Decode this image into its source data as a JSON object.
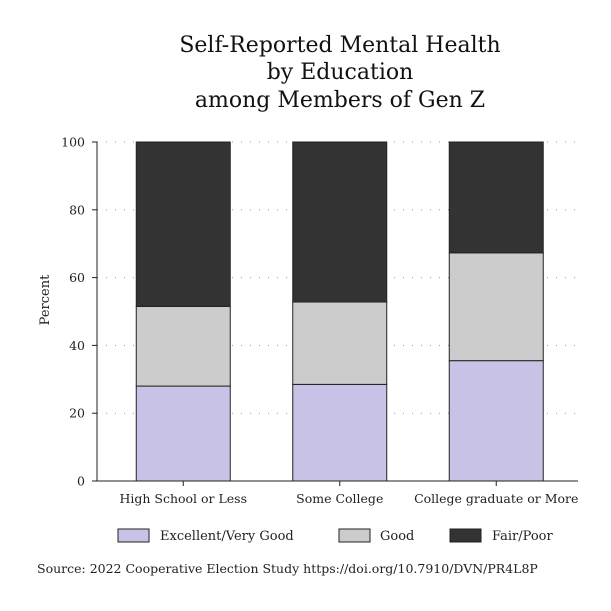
{
  "chart_data": {
    "type": "bar",
    "stacked": true,
    "title": [
      "Self-Reported Mental Health",
      "by Education",
      "among Members of Gen Z"
    ],
    "ylabel": "Percent",
    "xlabel": "",
    "ylim": [
      0,
      100
    ],
    "yticks": [
      0,
      20,
      40,
      60,
      80,
      100
    ],
    "grid": "dotted-horizontal",
    "legend_position": "bottom",
    "categories": [
      "High School or Less",
      "Some College",
      "College graduate or More"
    ],
    "series": [
      {
        "name": "Excellent/Very Good",
        "color": "#c8c3e6",
        "values": [
          28,
          28.5,
          35.5
        ]
      },
      {
        "name": "Good",
        "color": "#cccccc",
        "values": [
          23.5,
          24.3,
          31.8
        ]
      },
      {
        "name": "Fair/Poor",
        "color": "#333333",
        "values": [
          48.5,
          47.2,
          32.7
        ]
      }
    ],
    "source": "Source: 2022 Cooperative Election Study https://doi.org/10.7910/DVN/PR4L8P"
  }
}
